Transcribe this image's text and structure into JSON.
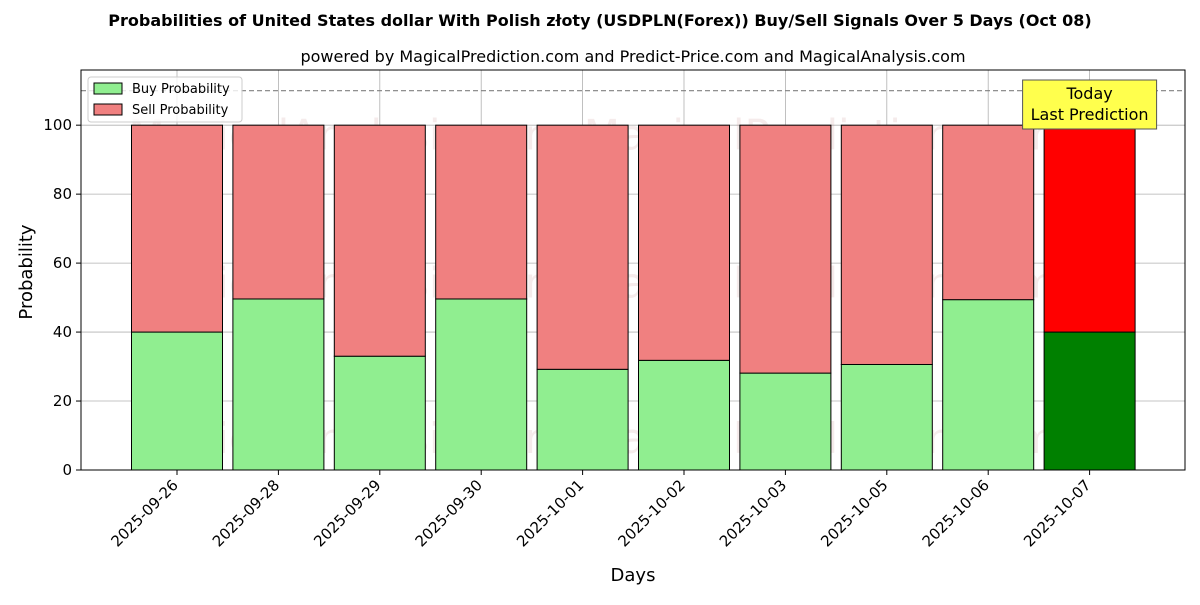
{
  "chart_data": {
    "type": "bar",
    "stacked": true,
    "title": "Probabilities of United States dollar With Polish złoty (USDPLN(Forex)) Buy/Sell Signals Over 5 Days (Oct 08)",
    "subtitle": "powered by MagicalPrediction.com and Predict-Price.com and MagicalAnalysis.com",
    "xlabel": "Days",
    "ylabel": "Probability",
    "ylim": [
      0,
      116
    ],
    "yticks": [
      0,
      20,
      40,
      60,
      80,
      100
    ],
    "reference_line": 110,
    "grid": true,
    "legend_position": "top-left",
    "categories": [
      "2025-09-26",
      "2025-09-28",
      "2025-09-29",
      "2025-09-30",
      "2025-10-01",
      "2025-10-02",
      "2025-10-03",
      "2025-10-05",
      "2025-10-06",
      "2025-10-07"
    ],
    "series": [
      {
        "name": "Buy Probability",
        "values": [
          40,
          49.6,
          33,
          49.6,
          29.2,
          31.8,
          28.1,
          30.6,
          49.4,
          40
        ],
        "color": "#90ee90",
        "highlight_color": "#008000"
      },
      {
        "name": "Sell Probability",
        "values": [
          60,
          50.4,
          67,
          50.4,
          70.8,
          68.2,
          71.9,
          69.4,
          50.6,
          60
        ],
        "color": "#f08080",
        "highlight_color": "#ff0000"
      }
    ],
    "highlight_index": 9,
    "annotation": {
      "lines": [
        "Today",
        "Last Prediction"
      ],
      "bg_color": "#ffff4d"
    },
    "watermarks": [
      "MagicalAnalysis.com",
      "MagicalPrediction.com"
    ]
  }
}
